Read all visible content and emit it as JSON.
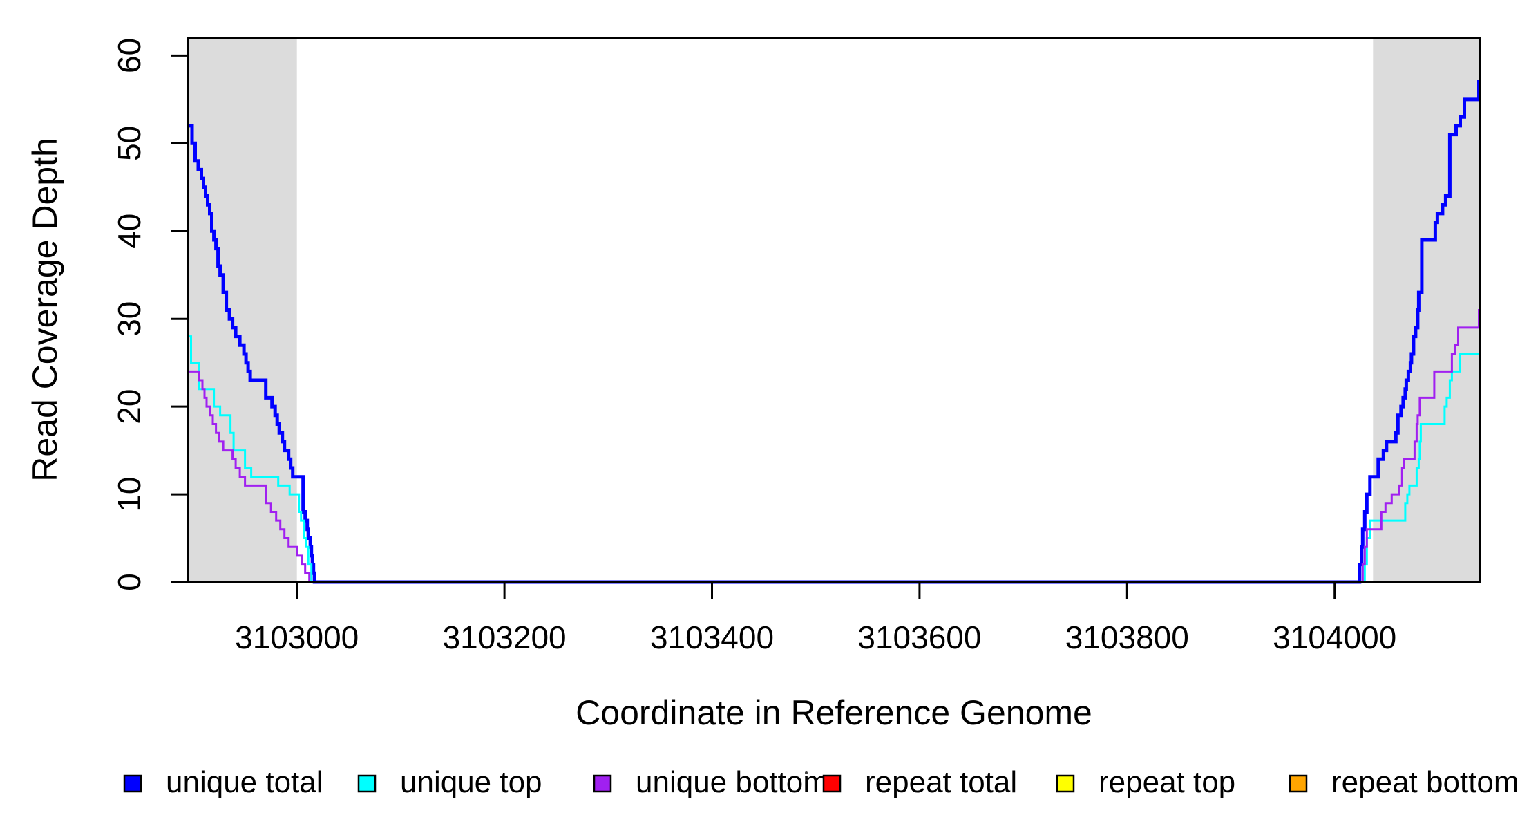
{
  "chart_data": {
    "type": "line",
    "subtype": "step-coverage",
    "title": "",
    "xlabel": "Coordinate in Reference Genome",
    "ylabel": "Read Coverage Depth",
    "xlim": [
      3102895,
      3104140
    ],
    "ylim": [
      0,
      62
    ],
    "grid": false,
    "legend_position": "bottom",
    "x_axis": {
      "ticks": [
        3103000,
        3103200,
        3103400,
        3103600,
        3103800,
        3104000
      ]
    },
    "y_axis": {
      "ticks": [
        0,
        10,
        20,
        30,
        40,
        50,
        60
      ]
    },
    "bands": [
      {
        "from": 3102895,
        "to": 3103000,
        "color": "#DCDCDC",
        "name": "left-shaded-region"
      },
      {
        "from": 3104037,
        "to": 3104140,
        "color": "#DCDCDC",
        "name": "right-shaded-region"
      }
    ],
    "series": [
      {
        "name": "unique total",
        "color": "#0000FF",
        "width": 5,
        "segments": [
          {
            "end": 3104140,
            "points": [
              [
                3102895,
                52
              ],
              [
                3102899,
                50
              ],
              [
                3102902,
                48
              ],
              [
                3102905,
                47
              ],
              [
                3102908,
                46
              ],
              [
                3102910,
                45
              ],
              [
                3102912,
                44
              ],
              [
                3102914,
                43
              ],
              [
                3102916,
                42
              ],
              [
                3102918,
                40
              ],
              [
                3102920,
                39
              ],
              [
                3102922,
                38
              ],
              [
                3102924,
                36
              ],
              [
                3102926,
                35
              ],
              [
                3102929,
                33
              ],
              [
                3102932,
                31
              ],
              [
                3102935,
                30
              ],
              [
                3102938,
                29
              ],
              [
                3102941,
                28
              ],
              [
                3102945,
                27
              ],
              [
                3102949,
                26
              ],
              [
                3102951,
                25
              ],
              [
                3102953,
                24
              ],
              [
                3102955,
                23
              ],
              [
                3102970,
                21
              ],
              [
                3102976,
                20
              ],
              [
                3102979,
                19
              ],
              [
                3102981,
                18
              ],
              [
                3102983,
                17
              ],
              [
                3102986,
                16
              ],
              [
                3102988,
                15
              ],
              [
                3102992,
                14
              ],
              [
                3102994,
                13
              ],
              [
                3102996,
                12
              ],
              [
                3103006,
                8
              ],
              [
                3103008,
                7
              ],
              [
                3103010,
                6
              ],
              [
                3103011,
                5
              ],
              [
                3103013,
                4
              ],
              [
                3103014,
                3
              ],
              [
                3103015,
                2
              ],
              [
                3103016,
                1
              ],
              [
                3103017,
                0
              ],
              [
                3104024,
                2
              ],
              [
                3104026,
                4
              ],
              [
                3104027,
                6
              ],
              [
                3104029,
                8
              ],
              [
                3104031,
                10
              ],
              [
                3104034,
                12
              ],
              [
                3104042,
                14
              ],
              [
                3104047,
                15
              ],
              [
                3104050,
                16
              ],
              [
                3104059,
                17
              ],
              [
                3104061,
                19
              ],
              [
                3104064,
                20
              ],
              [
                3104066,
                21
              ],
              [
                3104068,
                22
              ],
              [
                3104069,
                23
              ],
              [
                3104071,
                24
              ],
              [
                3104073,
                25
              ],
              [
                3104074,
                26
              ],
              [
                3104076,
                28
              ],
              [
                3104078,
                29
              ],
              [
                3104080,
                31
              ],
              [
                3104081,
                33
              ],
              [
                3104084,
                39
              ],
              [
                3104097,
                41
              ],
              [
                3104099,
                42
              ],
              [
                3104104,
                43
              ],
              [
                3104107,
                44
              ],
              [
                3104111,
                51
              ],
              [
                3104117,
                52
              ],
              [
                3104121,
                53
              ],
              [
                3104125,
                55
              ],
              [
                3104139,
                57
              ]
            ]
          }
        ]
      },
      {
        "name": "unique top",
        "color": "#00FFFF",
        "width": 3,
        "segments": [
          {
            "end": 3104140,
            "points": [
              [
                3102895,
                28
              ],
              [
                3102898,
                25
              ],
              [
                3102906,
                22
              ],
              [
                3102920,
                20
              ],
              [
                3102926,
                19
              ],
              [
                3102936,
                17
              ],
              [
                3102939,
                15
              ],
              [
                3102950,
                13
              ],
              [
                3102956,
                12
              ],
              [
                3102982,
                11
              ],
              [
                3102993,
                10
              ],
              [
                3103002,
                8
              ],
              [
                3103004,
                7
              ],
              [
                3103007,
                5
              ],
              [
                3103009,
                4
              ],
              [
                3103011,
                2
              ],
              [
                3103014,
                0
              ],
              [
                3104029,
                2
              ],
              [
                3104031,
                5
              ],
              [
                3104034,
                7
              ],
              [
                3104068,
                9
              ],
              [
                3104070,
                10
              ],
              [
                3104072,
                11
              ],
              [
                3104079,
                13
              ],
              [
                3104081,
                14
              ],
              [
                3104082,
                16
              ],
              [
                3104083,
                18
              ],
              [
                3104106,
                20
              ],
              [
                3104108,
                21
              ],
              [
                3104111,
                23
              ],
              [
                3104113,
                24
              ],
              [
                3104121,
                26
              ]
            ]
          }
        ]
      },
      {
        "name": "unique bottom",
        "color": "#A020F0",
        "width": 3,
        "segments": [
          {
            "end": 3104140,
            "points": [
              [
                3102895,
                24
              ],
              [
                3102906,
                23
              ],
              [
                3102909,
                22
              ],
              [
                3102911,
                21
              ],
              [
                3102913,
                20
              ],
              [
                3102916,
                19
              ],
              [
                3102919,
                18
              ],
              [
                3102922,
                17
              ],
              [
                3102925,
                16
              ],
              [
                3102929,
                15
              ],
              [
                3102938,
                14
              ],
              [
                3102941,
                13
              ],
              [
                3102945,
                12
              ],
              [
                3102950,
                11
              ],
              [
                3102970,
                9
              ],
              [
                3102975,
                8
              ],
              [
                3102980,
                7
              ],
              [
                3102984,
                6
              ],
              [
                3102988,
                5
              ],
              [
                3102992,
                4
              ],
              [
                3103000,
                3
              ],
              [
                3103005,
                2
              ],
              [
                3103008,
                1
              ],
              [
                3103012,
                0
              ],
              [
                3104027,
                2
              ],
              [
                3104029,
                4
              ],
              [
                3104031,
                6
              ],
              [
                3104045,
                8
              ],
              [
                3104049,
                9
              ],
              [
                3104055,
                10
              ],
              [
                3104062,
                11
              ],
              [
                3104065,
                13
              ],
              [
                3104067,
                14
              ],
              [
                3104077,
                16
              ],
              [
                3104079,
                18
              ],
              [
                3104080,
                19
              ],
              [
                3104082,
                21
              ],
              [
                3104096,
                24
              ],
              [
                3104113,
                26
              ],
              [
                3104116,
                27
              ],
              [
                3104119,
                29
              ],
              [
                3104139,
                31
              ]
            ]
          }
        ]
      },
      {
        "name": "repeat total",
        "color": "#FF0000",
        "width": 4,
        "segments": [
          {
            "end": 3103014,
            "points": [
              [
                3102895,
                0
              ]
            ]
          },
          {
            "end": 3104140,
            "points": [
              [
                3104027,
                0
              ]
            ]
          }
        ]
      },
      {
        "name": "repeat top",
        "color": "#FFFF00",
        "width": 4,
        "segments": [
          {
            "end": 3103014,
            "points": [
              [
                3102895,
                0
              ]
            ]
          },
          {
            "end": 3104140,
            "points": [
              [
                3104027,
                0
              ]
            ]
          }
        ]
      },
      {
        "name": "repeat bottom",
        "color": "#FFA500",
        "width": 4,
        "segments": [
          {
            "end": 3103014,
            "points": [
              [
                3102895,
                0
              ]
            ]
          },
          {
            "end": 3104140,
            "points": [
              [
                3104027,
                0
              ]
            ]
          }
        ]
      }
    ],
    "legend": [
      {
        "label": "unique total",
        "color": "#0000FF"
      },
      {
        "label": "unique top",
        "color": "#00FFFF"
      },
      {
        "label": "unique bottom",
        "color": "#A020F0"
      },
      {
        "label": "repeat total",
        "color": "#FF0000"
      },
      {
        "label": "repeat top",
        "color": "#FFFF00"
      },
      {
        "label": "repeat bottom",
        "color": "#FFA500"
      }
    ]
  }
}
